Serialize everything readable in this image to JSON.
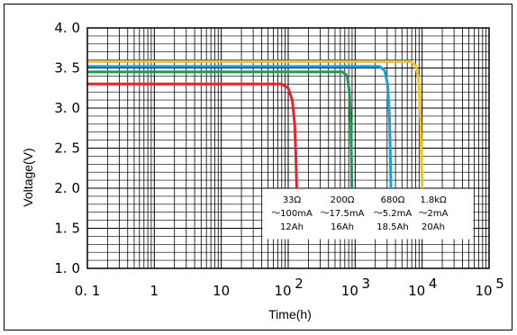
{
  "chart_data": {
    "type": "line",
    "xlabel": "Time(h)",
    "ylabel": "Voltage(V)",
    "xscale": "log",
    "xlim": [
      0.1,
      100000
    ],
    "ylim": [
      1.0,
      4.0
    ],
    "grid": true,
    "x_tick_labels": [
      {
        "value": 0.1,
        "label": "0. 1"
      },
      {
        "value": 1,
        "label": "1"
      },
      {
        "value": 10,
        "label": "10"
      },
      {
        "value": 100,
        "label": "10",
        "sup": "2"
      },
      {
        "value": 1000,
        "label": "10",
        "sup": "3"
      },
      {
        "value": 10000,
        "label": "10",
        "sup": "4"
      },
      {
        "value": 100000,
        "label": "10",
        "sup": "5"
      }
    ],
    "y_tick_labels": [
      {
        "value": 1.0,
        "label": "1. 0"
      },
      {
        "value": 1.5,
        "label": "1. 5"
      },
      {
        "value": 2.0,
        "label": "2. 0"
      },
      {
        "value": 2.5,
        "label": "2. 5"
      },
      {
        "value": 3.0,
        "label": "3. 0"
      },
      {
        "value": 3.5,
        "label": "3. 5"
      },
      {
        "value": 4.0,
        "label": "4. 0"
      }
    ],
    "series": [
      {
        "color": "#e8232a",
        "legend": [
          "33Ω",
          "～100mA",
          "12Ah"
        ],
        "points": [
          [
            0.1,
            3.3
          ],
          [
            80,
            3.3
          ],
          [
            100,
            3.25
          ],
          [
            115,
            3.1
          ],
          [
            125,
            2.8
          ],
          [
            130,
            2.4
          ],
          [
            134,
            2.0
          ]
        ]
      },
      {
        "color": "#1a9a55",
        "legend": [
          "200Ω",
          "～17.5mA",
          "16Ah"
        ],
        "points": [
          [
            0.1,
            3.45
          ],
          [
            650,
            3.45
          ],
          [
            760,
            3.4
          ],
          [
            820,
            3.2
          ],
          [
            860,
            2.8
          ],
          [
            880,
            2.4
          ],
          [
            890,
            2.0
          ]
        ]
      },
      {
        "color": "#1aa0e0",
        "legend": [
          "680Ω",
          "～5.2mA",
          "18.5Ah"
        ],
        "points": [
          [
            0.1,
            3.52
          ],
          [
            2300,
            3.52
          ],
          [
            2750,
            3.47
          ],
          [
            3050,
            3.3
          ],
          [
            3250,
            2.9
          ],
          [
            3350,
            2.4
          ],
          [
            3420,
            2.0
          ]
        ]
      },
      {
        "color": "#f2c418",
        "legend": [
          "1.8kΩ",
          "～2mA",
          "20Ah"
        ],
        "points": [
          [
            0.1,
            3.58
          ],
          [
            6800,
            3.58
          ],
          [
            8000,
            3.53
          ],
          [
            8900,
            3.35
          ],
          [
            9400,
            2.9
          ],
          [
            9750,
            2.4
          ],
          [
            10000,
            2.0
          ]
        ]
      }
    ]
  }
}
